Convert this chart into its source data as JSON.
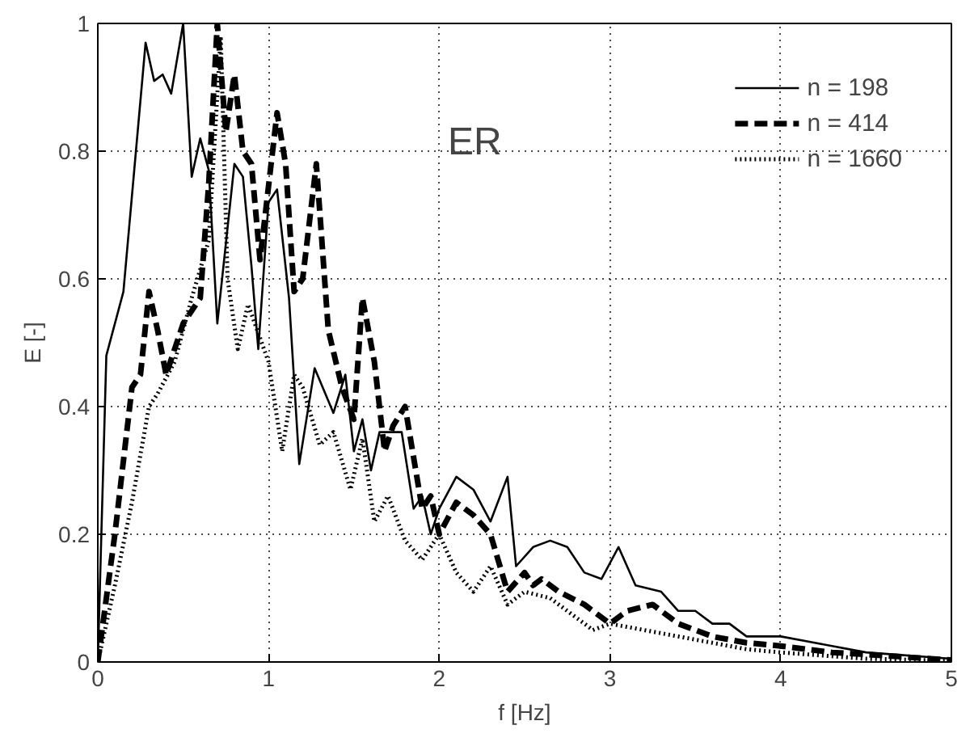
{
  "chart_data": {
    "type": "line",
    "xlabel": "f [Hz]",
    "ylabel": "E [-]",
    "annotations": [
      "ER"
    ],
    "xlim": [
      0,
      5
    ],
    "ylim": [
      0,
      1
    ],
    "xticks": [
      0,
      1,
      2,
      3,
      4,
      5
    ],
    "yticks": [
      0,
      0.2,
      0.4,
      0.6,
      0.8,
      1
    ],
    "grid": true,
    "legend": "top right",
    "marker": "none",
    "series": [
      {
        "name": "n = 198",
        "color": "#000000",
        "line_style": "solid",
        "x": [
          0,
          0.05,
          0.15,
          0.28,
          0.33,
          0.38,
          0.43,
          0.5,
          0.55,
          0.6,
          0.65,
          0.7,
          0.8,
          0.85,
          0.9,
          0.94,
          1.0,
          1.05,
          1.12,
          1.18,
          1.27,
          1.38,
          1.45,
          1.5,
          1.55,
          1.6,
          1.65,
          1.7,
          1.78,
          1.85,
          1.9,
          1.95,
          2.0,
          2.1,
          2.2,
          2.3,
          2.4,
          2.45,
          2.55,
          2.65,
          2.75,
          2.85,
          2.95,
          3.05,
          3.15,
          3.3,
          3.4,
          3.5,
          3.6,
          3.7,
          3.8,
          4.0,
          4.2,
          4.5,
          5.0
        ],
        "values": [
          0,
          0.48,
          0.58,
          0.97,
          0.91,
          0.92,
          0.89,
          1.0,
          0.76,
          0.82,
          0.77,
          0.53,
          0.78,
          0.76,
          0.62,
          0.49,
          0.72,
          0.74,
          0.57,
          0.31,
          0.46,
          0.39,
          0.45,
          0.33,
          0.38,
          0.3,
          0.36,
          0.36,
          0.36,
          0.24,
          0.26,
          0.2,
          0.24,
          0.29,
          0.27,
          0.22,
          0.29,
          0.15,
          0.18,
          0.19,
          0.18,
          0.14,
          0.13,
          0.18,
          0.12,
          0.11,
          0.08,
          0.08,
          0.06,
          0.06,
          0.04,
          0.04,
          0.03,
          0.015,
          0.005
        ]
      },
      {
        "name": "n = 414",
        "color": "#000000",
        "line_style": "dashed",
        "x": [
          0,
          0.1,
          0.2,
          0.25,
          0.3,
          0.35,
          0.4,
          0.5,
          0.6,
          0.65,
          0.7,
          0.75,
          0.8,
          0.85,
          0.9,
          0.95,
          1.05,
          1.1,
          1.15,
          1.2,
          1.28,
          1.35,
          1.43,
          1.5,
          1.55,
          1.62,
          1.68,
          1.73,
          1.8,
          1.85,
          1.9,
          1.95,
          2.0,
          2.1,
          2.2,
          2.3,
          2.4,
          2.5,
          2.55,
          2.6,
          2.7,
          2.85,
          3.0,
          3.1,
          3.25,
          3.4,
          3.6,
          3.8,
          4.0,
          4.3,
          4.6,
          5.0
        ],
        "values": [
          0,
          0.2,
          0.43,
          0.45,
          0.58,
          0.52,
          0.45,
          0.53,
          0.57,
          0.75,
          1.0,
          0.83,
          0.92,
          0.8,
          0.78,
          0.63,
          0.86,
          0.78,
          0.58,
          0.6,
          0.78,
          0.52,
          0.43,
          0.38,
          0.57,
          0.47,
          0.33,
          0.37,
          0.4,
          0.32,
          0.24,
          0.26,
          0.2,
          0.25,
          0.23,
          0.2,
          0.11,
          0.14,
          0.12,
          0.13,
          0.11,
          0.09,
          0.06,
          0.08,
          0.09,
          0.06,
          0.04,
          0.03,
          0.025,
          0.015,
          0.01,
          0.003
        ]
      },
      {
        "name": "n = 1660",
        "color": "#000000",
        "line_style": "dotted",
        "x": [
          0,
          0.1,
          0.2,
          0.3,
          0.35,
          0.45,
          0.55,
          0.65,
          0.72,
          0.76,
          0.82,
          0.88,
          0.92,
          1.0,
          1.08,
          1.15,
          1.2,
          1.3,
          1.38,
          1.48,
          1.55,
          1.62,
          1.7,
          1.8,
          1.9,
          2.0,
          2.1,
          2.2,
          2.3,
          2.4,
          2.5,
          2.65,
          2.8,
          2.9,
          3.0,
          3.2,
          3.4,
          3.6,
          3.8,
          4.0,
          4.5,
          5.0
        ],
        "values": [
          0,
          0.12,
          0.25,
          0.4,
          0.42,
          0.47,
          0.57,
          0.66,
          0.98,
          0.6,
          0.49,
          0.56,
          0.53,
          0.47,
          0.33,
          0.45,
          0.43,
          0.34,
          0.36,
          0.27,
          0.35,
          0.22,
          0.26,
          0.19,
          0.16,
          0.2,
          0.14,
          0.11,
          0.15,
          0.09,
          0.11,
          0.1,
          0.07,
          0.05,
          0.06,
          0.05,
          0.04,
          0.03,
          0.02,
          0.015,
          0.005,
          0.002
        ]
      }
    ]
  }
}
